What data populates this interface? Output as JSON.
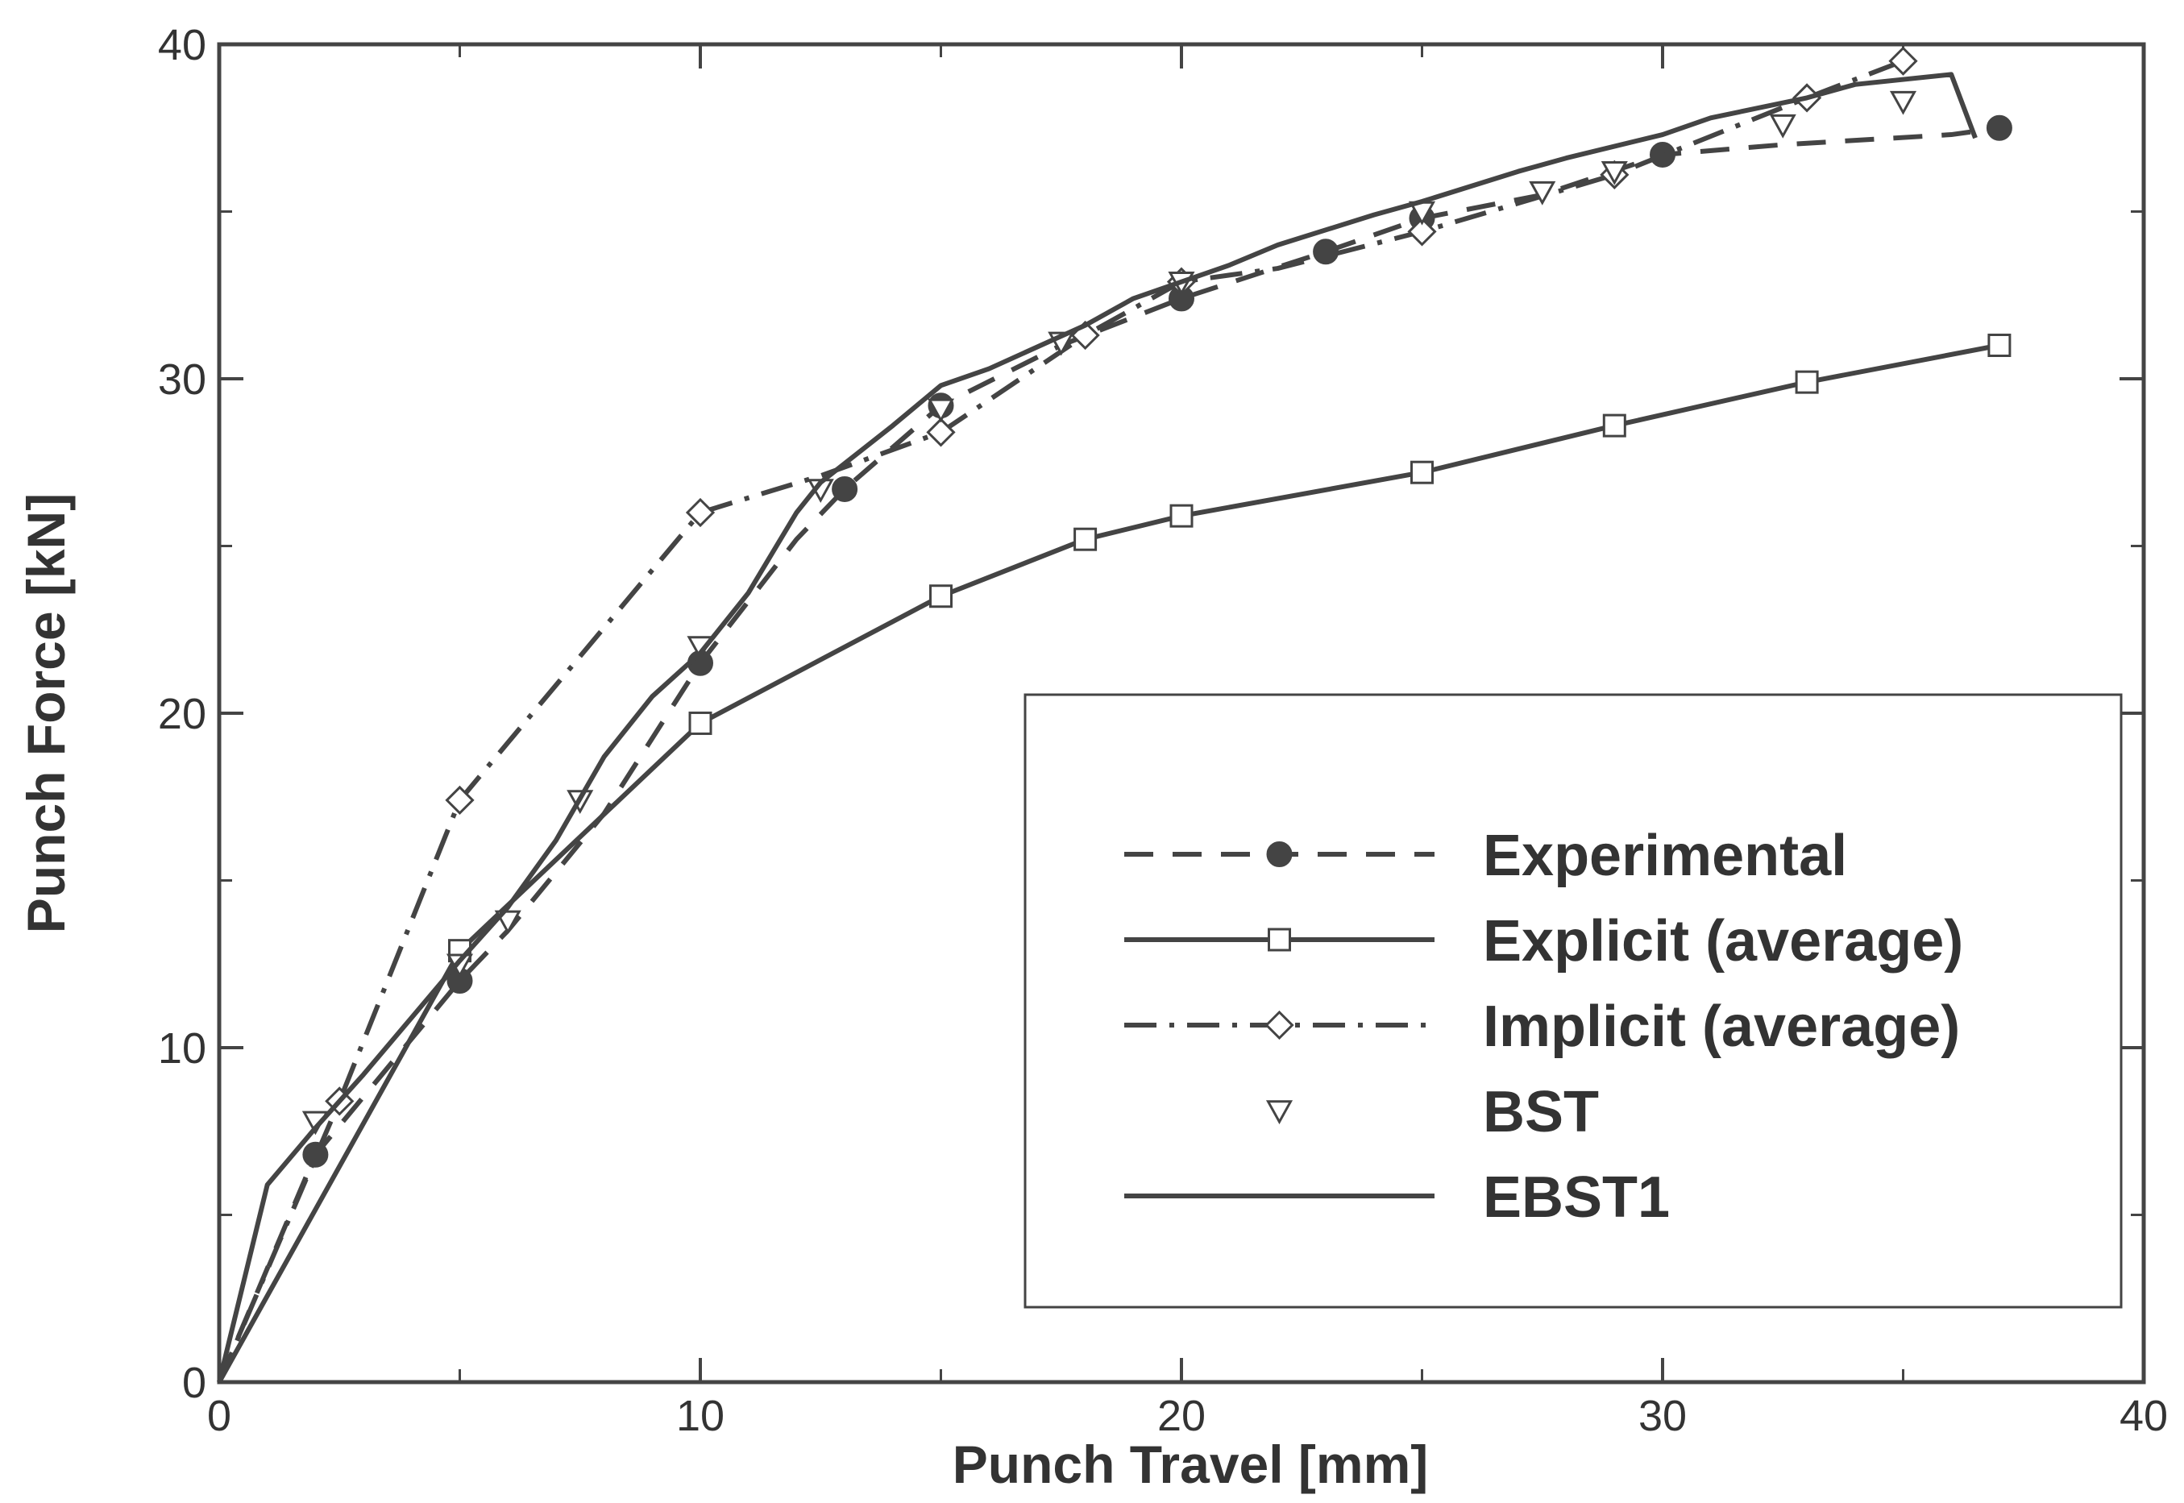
{
  "chart_data": {
    "type": "line",
    "title": "",
    "xlabel": "Punch Travel [mm]",
    "ylabel": "Punch Force [kN]",
    "xlim": [
      0,
      40
    ],
    "ylim": [
      0,
      40
    ],
    "x_ticks": [
      0,
      10,
      20,
      30,
      40
    ],
    "y_ticks": [
      0,
      10,
      20,
      30,
      40
    ],
    "x_minor_ticks": [
      5,
      15,
      25,
      35
    ],
    "y_minor_ticks": [
      5,
      15,
      25,
      35
    ],
    "grid": false,
    "legend_position": "bottom-right",
    "series": [
      {
        "name": "Experimental",
        "line_style": "dashed",
        "marker": "filled-circle",
        "x": [
          0,
          2,
          5,
          6,
          8,
          10,
          12,
          13,
          15,
          17.5,
          20,
          23,
          25,
          27.5,
          30,
          32.5,
          36,
          37
        ],
        "y": [
          0,
          6.8,
          12,
          13.5,
          17,
          21.5,
          25.2,
          26.7,
          29.2,
          31,
          32.4,
          33.8,
          34.8,
          35.5,
          36.7,
          37,
          37.3,
          37.5
        ],
        "marker_points": [
          [
            2,
            6.8
          ],
          [
            5,
            12
          ],
          [
            10,
            21.5
          ],
          [
            13,
            26.7
          ],
          [
            15,
            29.2
          ],
          [
            20,
            32.4
          ],
          [
            23,
            33.8
          ],
          [
            25,
            34.8
          ],
          [
            30,
            36.7
          ],
          [
            37,
            37.5
          ]
        ]
      },
      {
        "name": "Explicit (average)",
        "line_style": "solid",
        "marker": "open-square",
        "x": [
          0,
          5,
          10,
          15,
          18,
          20,
          25,
          29,
          33,
          37
        ],
        "y": [
          0,
          12.9,
          19.7,
          23.5,
          25.2,
          25.9,
          27.2,
          28.6,
          29.9,
          31
        ],
        "marker_points": [
          [
            5,
            12.9
          ],
          [
            10,
            19.7
          ],
          [
            15,
            23.5
          ],
          [
            18,
            25.2
          ],
          [
            20,
            25.9
          ],
          [
            25,
            27.2
          ],
          [
            29,
            28.6
          ],
          [
            33,
            29.9
          ],
          [
            37,
            31
          ]
        ]
      },
      {
        "name": "Implicit (average)",
        "line_style": "dash-dot",
        "marker": "open-diamond",
        "x": [
          0,
          2.5,
          5,
          10,
          12.5,
          15,
          18,
          20,
          22,
          25,
          29,
          33,
          35
        ],
        "y": [
          0,
          8.4,
          17.4,
          26,
          27.1,
          28.4,
          31.3,
          32.9,
          33.3,
          34.4,
          36.1,
          38.4,
          39.5
        ],
        "marker_points": [
          [
            2.5,
            8.4
          ],
          [
            5,
            17.4
          ],
          [
            10,
            26
          ],
          [
            15,
            28.4
          ],
          [
            18,
            31.3
          ],
          [
            20,
            32.9
          ],
          [
            25,
            34.4
          ],
          [
            29,
            36.1
          ],
          [
            33,
            38.4
          ],
          [
            35,
            39.5
          ]
        ]
      },
      {
        "name": "BST",
        "line_style": "none",
        "marker": "open-down-triangle",
        "x": [
          2,
          5,
          6,
          7.5,
          10,
          12.5,
          15,
          17.5,
          20,
          25,
          27.5,
          29,
          32.5,
          35
        ],
        "y": [
          7.8,
          12.5,
          13.8,
          17.4,
          22,
          26.7,
          29.1,
          31.1,
          32.9,
          35,
          35.6,
          36.2,
          37.6,
          38.3
        ]
      },
      {
        "name": "EBST1",
        "line_style": "solid",
        "marker": "none",
        "x": [
          0,
          1,
          2,
          3,
          4,
          5,
          6,
          7,
          8,
          9,
          10,
          11,
          12,
          12.5,
          14,
          15,
          16,
          18,
          19,
          20,
          21,
          22,
          24,
          25,
          27,
          28,
          30,
          31,
          33,
          34,
          36,
          36.5
        ],
        "y": [
          0,
          5.9,
          7.6,
          9.2,
          10.9,
          12.6,
          14.2,
          16.2,
          18.7,
          20.5,
          21.8,
          23.6,
          26,
          26.9,
          28.6,
          29.8,
          30.3,
          31.6,
          32.4,
          32.9,
          33.4,
          34,
          34.9,
          35.3,
          36.2,
          36.6,
          37.3,
          37.8,
          38.4,
          38.8,
          39.1,
          37.2
        ]
      }
    ]
  }
}
